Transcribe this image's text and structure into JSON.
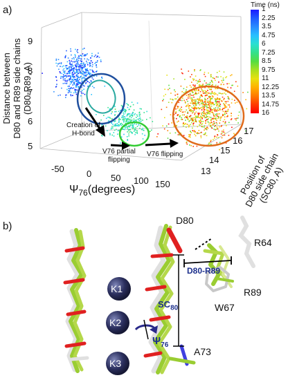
{
  "panel_a": {
    "label": "a)",
    "z_axis": {
      "label_lines": [
        "Distance between",
        "D80 and R89 side chains",
        "(D80-R89, A)"
      ],
      "ticks": [
        "9",
        "8",
        "7",
        "6",
        "5"
      ]
    },
    "x_axis": {
      "label_main": "Ψ",
      "label_sub": "76",
      "label_suffix": "(degrees)",
      "ticks": [
        "-50",
        "0",
        "50",
        "100",
        "150"
      ]
    },
    "y_axis": {
      "label_lines": [
        "Position of",
        "D80 side chain",
        "(SC80, A)"
      ],
      "ticks": [
        "17",
        "16",
        "15",
        "14",
        "13"
      ]
    },
    "colorbar": {
      "title": "Time (ns)",
      "ticks": [
        "1",
        "2.25",
        "3.5",
        "4.75",
        "6",
        "7.25",
        "8.5",
        "9.75",
        "11",
        "12.25",
        "13.5",
        "14.75",
        "16"
      ],
      "colors": [
        "#1a1aff",
        "#1f5bff",
        "#2a8cff",
        "#28c0ff",
        "#2ae0d0",
        "#33e08a",
        "#55dd40",
        "#a8e020",
        "#e8e010",
        "#ffb000",
        "#ff7a00",
        "#ff3a00",
        "#ff0000"
      ]
    },
    "annotations": {
      "creation": [
        "Creation of",
        "H-bond"
      ],
      "v76_partial": [
        "V76 partial",
        "flipping"
      ],
      "v76_flipping": "V76 flipping"
    },
    "circle_colors": {
      "blue": "#1f4f9e",
      "teal": "#2aa9a0",
      "green": "#33cc33",
      "orange": "#e06a1a"
    },
    "chart_data": {
      "type": "scatter",
      "dimensions": 3,
      "x_label": "Ψ76(degrees)",
      "y_label": "Position of D80 side chain (SC80, A)",
      "z_label": "Distance between D80 and R89 side chains (D80-R89, A)",
      "xlim": [
        -50,
        150
      ],
      "ylim": [
        13,
        17
      ],
      "zlim": [
        5,
        9
      ],
      "color_by": "Time (ns)",
      "color_range": [
        1,
        16
      ],
      "clusters": [
        {
          "name": "",
          "time_range_ns": [
            1,
            5
          ],
          "psi76_center": -40,
          "sc80_center": 15,
          "d80_r89_center": 7.2
        },
        {
          "name": "",
          "time_range_ns": [
            5,
            8
          ],
          "psi76_center": 40,
          "sc80_center": 14.5,
          "d80_r89_center": 5.8
        },
        {
          "name": "",
          "time_range_ns": [
            8,
            16
          ],
          "psi76_center": 150,
          "sc80_center": 14.5,
          "d80_r89_center": 6.5
        }
      ]
    }
  },
  "panel_b": {
    "label": "b)",
    "residues": {
      "d80": "D80",
      "r64": "R64",
      "r89": "R89",
      "w67": "W67",
      "a73": "A73"
    },
    "distance_label": "D80-R89",
    "sc_main": "SC",
    "sc_sub": "80",
    "psi_main": "Ψ",
    "psi_sub": "76",
    "ions": [
      "K1",
      "K2",
      "K3"
    ],
    "colors": {
      "ion": "#2b2f5e",
      "label_blue": "#1c2f8c",
      "carbon_green": "#9acd32",
      "carbon_white": "#e0e0e0",
      "oxygen": "#e02020",
      "nitrogen": "#4040e0"
    }
  }
}
